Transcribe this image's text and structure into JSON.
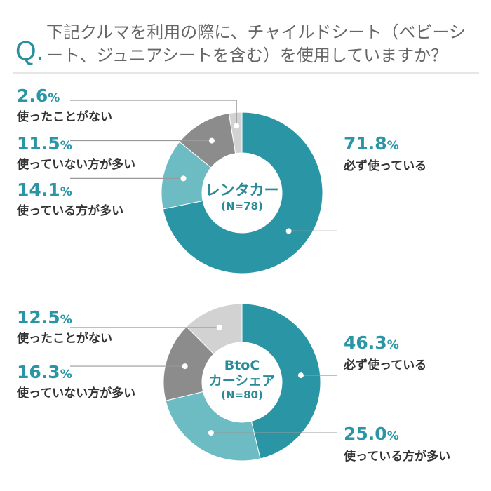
{
  "question_mark": "Q.",
  "question": "下記クルマを利用の際に、チャイルドシート（ベビーシート、ジュニアシートを含む）を使用していますか？",
  "colors": {
    "always": "#2a96a5",
    "mostly": "#6dbcc4",
    "mostly_not": "#8c8c8c",
    "never": "#d2d2d2",
    "accent_text": "#2a96a5"
  },
  "chart_data": [
    {
      "type": "pie",
      "donut": true,
      "center_title": "レンタカー",
      "center_n": "(N=78)",
      "categories": [
        "必ず使っている",
        "使っている方が多い",
        "使っていない方が多い",
        "使ったことがない"
      ],
      "values": [
        71.8,
        14.1,
        11.5,
        2.6
      ],
      "labels": [
        "71.8",
        "14.1",
        "11.5",
        "2.6"
      ]
    },
    {
      "type": "pie",
      "donut": true,
      "center_title_1": "BtoC",
      "center_title_2": "カーシェア",
      "center_n": "(N=80)",
      "categories": [
        "必ず使っている",
        "使っている方が多い",
        "使っていない方が多い",
        "使ったことがない"
      ],
      "values": [
        46.3,
        25.0,
        16.3,
        12.5
      ],
      "labels": [
        "46.3",
        "25.0",
        "16.3",
        "12.5"
      ]
    }
  ],
  "unit": "%"
}
